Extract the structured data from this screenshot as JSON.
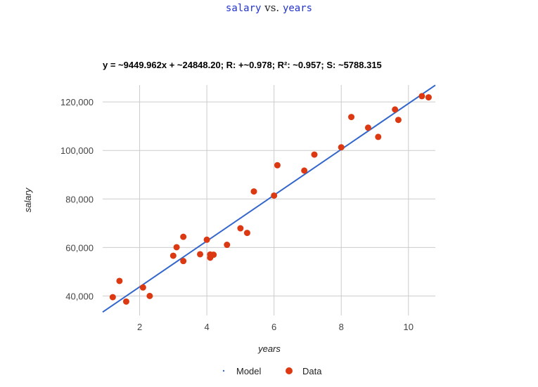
{
  "page": {
    "title_var1": "salary",
    "title_vs": " vs. ",
    "title_var2": "years"
  },
  "chart_data": {
    "type": "scatter",
    "subtitle": "y = ~9449.962x + ~24848.20; R: +~0.978; R²: ~0.957; S: ~5788.315",
    "xlabel": "years",
    "ylabel": "salary",
    "xlim": [
      0.9,
      10.8
    ],
    "ylim": [
      32000,
      127000
    ],
    "xticks": [
      2,
      4,
      6,
      8,
      10
    ],
    "yticks": [
      40000,
      60000,
      80000,
      100000,
      120000
    ],
    "ytick_labels": [
      "40,000",
      "60,000",
      "80,000",
      "100,000",
      "120,000"
    ],
    "grid": true,
    "legend_position": "bottom",
    "colors": {
      "model": "#3366cc",
      "data": "#dc3912"
    },
    "series": [
      {
        "name": "Model",
        "kind": "line",
        "slope": 9449.962,
        "intercept": 24848.2
      },
      {
        "name": "Data",
        "kind": "points",
        "x": [
          1.2,
          1.4,
          1.6,
          2.1,
          2.3,
          3.0,
          3.1,
          3.3,
          3.3,
          3.8,
          4.0,
          4.1,
          4.1,
          4.2,
          4.6,
          5.0,
          5.2,
          5.4,
          6.0,
          6.1,
          6.9,
          7.2,
          8.0,
          8.3,
          8.8,
          9.1,
          9.6,
          9.7,
          10.4,
          10.6
        ],
        "y": [
          39500,
          46200,
          37700,
          43500,
          40000,
          56600,
          60100,
          54400,
          64400,
          57200,
          63200,
          55800,
          57100,
          57000,
          61100,
          67900,
          66000,
          83100,
          81400,
          93900,
          91700,
          98300,
          101300,
          113800,
          109400,
          105600,
          116900,
          112600,
          122400,
          121900
        ]
      }
    ]
  }
}
